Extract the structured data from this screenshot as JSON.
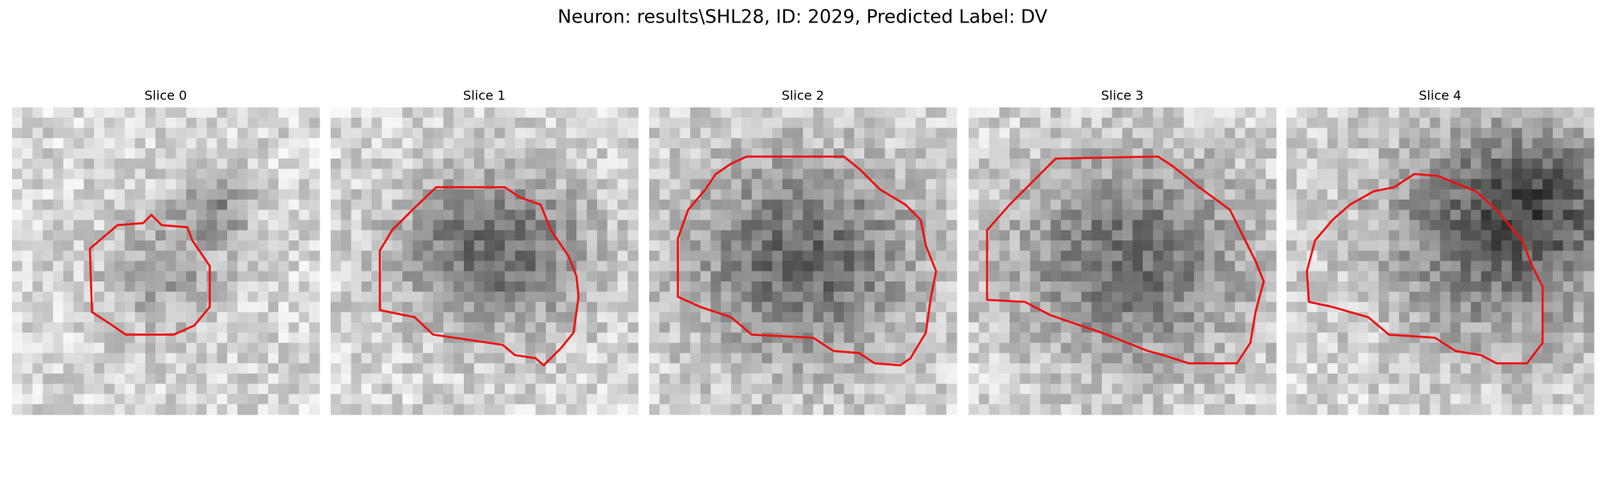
{
  "title": "Neuron: results\\SHL28, ID: 2029, Predicted Label: DV",
  "panels": [
    {
      "title": "Slice 0"
    },
    {
      "title": "Slice 1"
    },
    {
      "title": "Slice 2"
    },
    {
      "title": "Slice 3"
    },
    {
      "title": "Slice 4"
    }
  ]
}
